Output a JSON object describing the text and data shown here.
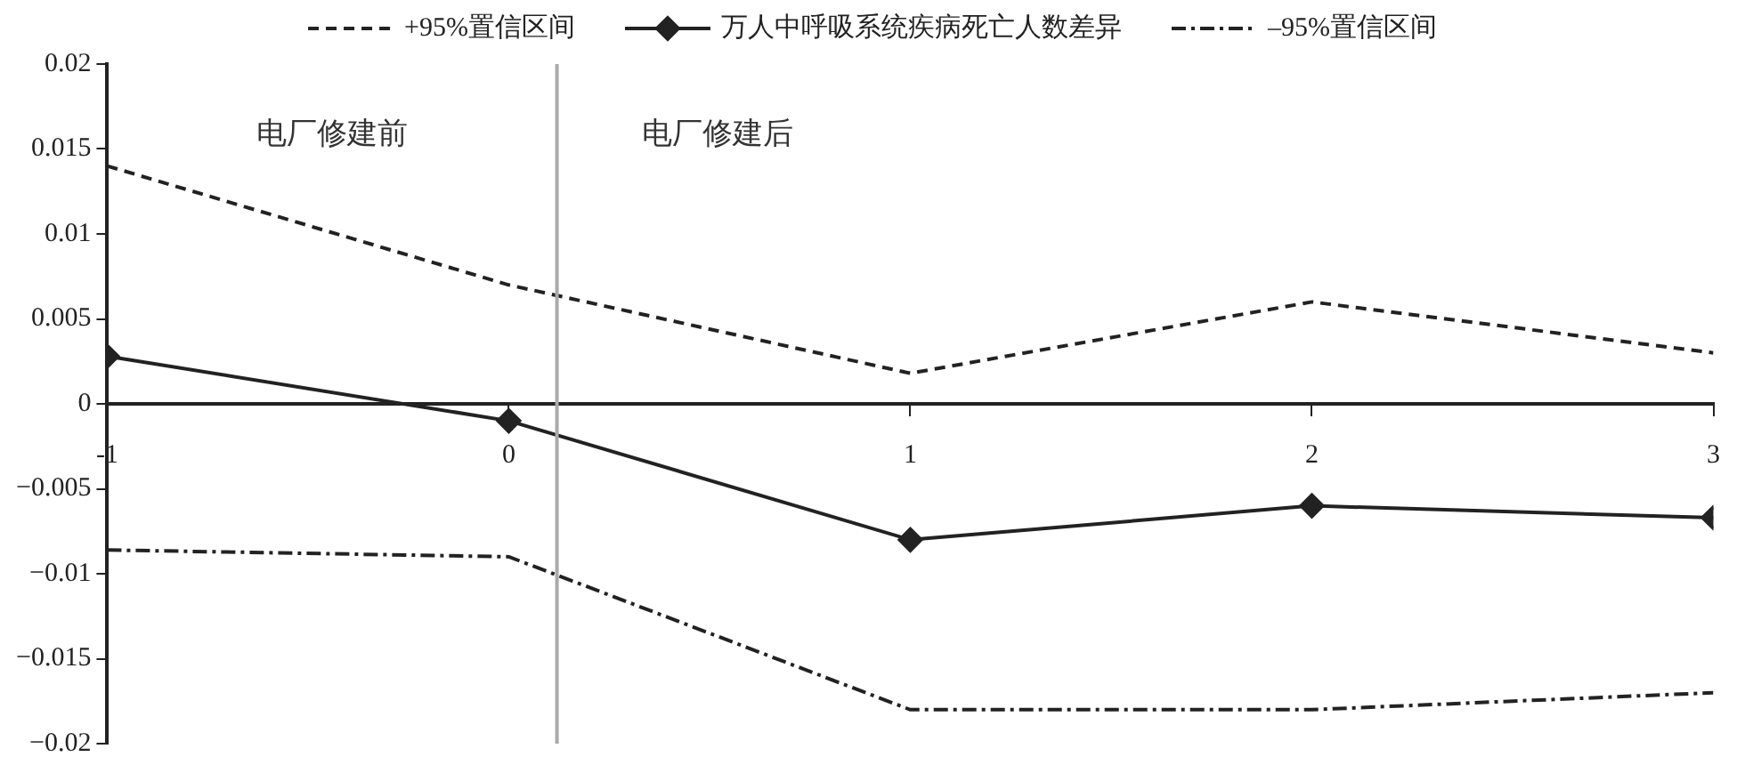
{
  "chart_data": {
    "type": "line",
    "x": [
      -1,
      0,
      1,
      2,
      3
    ],
    "series": [
      {
        "name": "+95%置信区间",
        "color": "#222222",
        "line_style": "dashed",
        "marker": "none",
        "values": [
          0.014,
          0.007,
          0.0018,
          0.006,
          0.003
        ]
      },
      {
        "name": "万人中呼吸系统疾病死亡人数差异",
        "color": "#222222",
        "line_style": "solid",
        "marker": "diamond",
        "values": [
          0.0028,
          -0.001,
          -0.008,
          -0.006,
          -0.0067
        ]
      },
      {
        "name": "–95%置信区间",
        "color": "#222222",
        "line_style": "dotted",
        "marker": "none",
        "values": [
          -0.0086,
          -0.009,
          -0.018,
          -0.018,
          -0.017
        ]
      }
    ],
    "xlim": [
      -1,
      3
    ],
    "xticks": [
      -1,
      0,
      1,
      2,
      3
    ],
    "ylim": [
      -0.02,
      0.02
    ],
    "yticks": [
      {
        "value": -0.02,
        "label": "−0.02"
      },
      {
        "value": -0.015,
        "label": "−0.015"
      },
      {
        "value": -0.01,
        "label": "−0.01"
      },
      {
        "value": -0.005,
        "label": "−0.005"
      },
      0,
      0.005,
      0.01,
      0.015,
      0.02
    ],
    "ref_lines": [
      {
        "axis": "x",
        "value": 0.12,
        "color": "#aaaaaa"
      }
    ],
    "annotations": [
      "电厂修建前",
      "电厂修建后"
    ],
    "legend": "top",
    "grid": false
  }
}
